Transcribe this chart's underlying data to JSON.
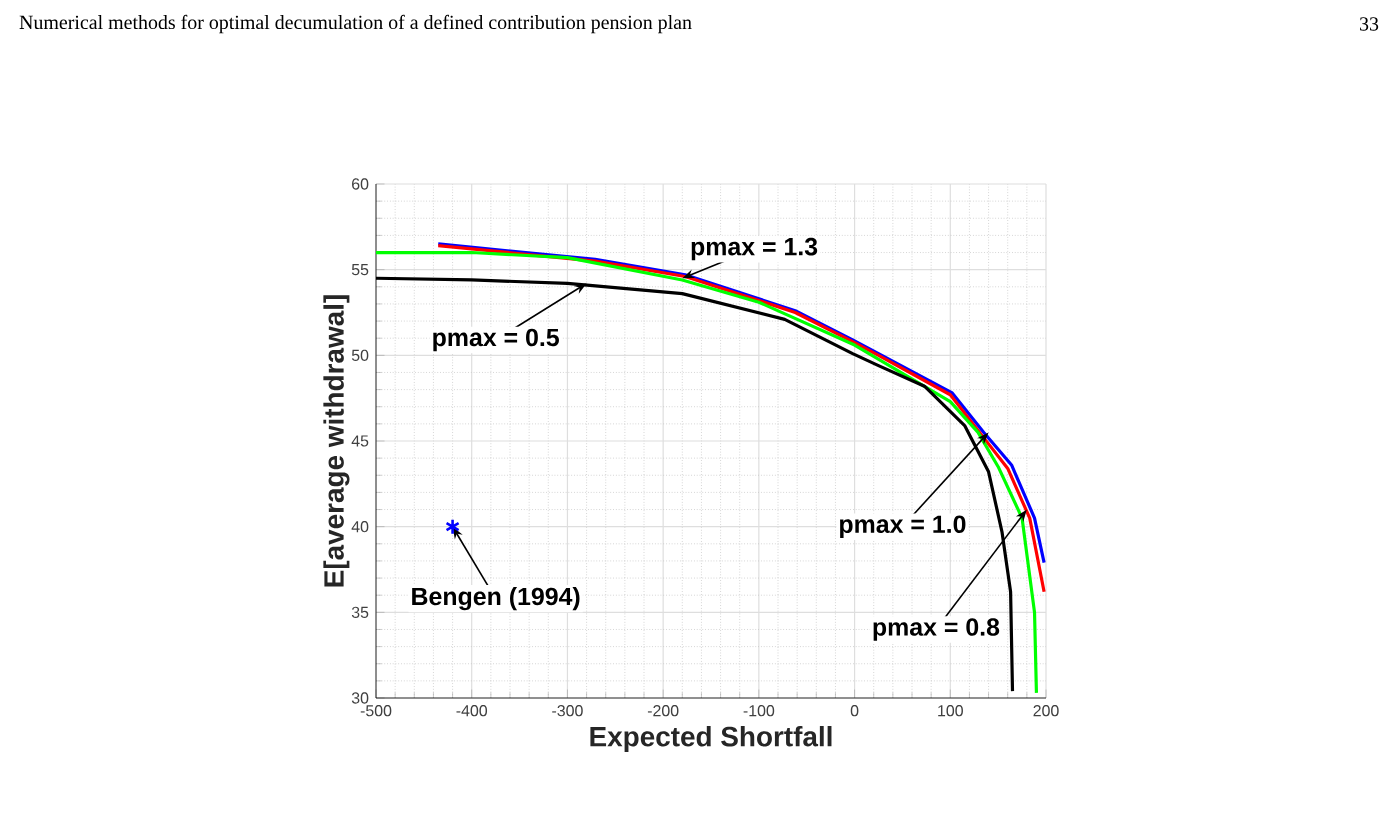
{
  "chart_data": {
    "type": "line",
    "xlabel": "Expected Shortfall",
    "ylabel": "E[average withdrawal]",
    "xlim": [
      -500,
      200
    ],
    "xticks": [
      -500,
      -400,
      -300,
      -200,
      -100,
      0,
      100,
      200
    ],
    "ylim": [
      30,
      60
    ],
    "yticks": [
      30,
      35,
      40,
      45,
      50,
      55,
      60
    ],
    "grid": true,
    "series": [
      {
        "color": "#0000ff",
        "x": [
          -435,
          -271,
          -177,
          -100,
          -62,
          -2,
          25,
          102,
          135,
          164,
          188,
          198
        ],
        "values": [
          56.5,
          55.6,
          54.7,
          53.3,
          52.6,
          50.9,
          50.1,
          47.8,
          45.5,
          43.6,
          40.5,
          37.9
        ]
      },
      {
        "color": "#ff0000",
        "x": [
          -435,
          -271,
          -177,
          -100,
          -62,
          -2,
          25,
          100,
          132,
          160,
          183,
          198
        ],
        "values": [
          56.4,
          55.5,
          54.6,
          53.2,
          52.5,
          50.8,
          50.0,
          47.7,
          45.4,
          43.4,
          40.5,
          36.2
        ]
      },
      {
        "color": "#00ff00",
        "x": [
          -500,
          -400,
          -300,
          -180,
          -100,
          0,
          100,
          129,
          150,
          175,
          188,
          190
        ],
        "values": [
          56.0,
          56.0,
          55.7,
          54.4,
          53.1,
          50.6,
          47.3,
          45.5,
          43.5,
          40.5,
          35.0,
          30.3
        ]
      },
      {
        "color": "#000000",
        "x": [
          -500,
          -400,
          -300,
          -180,
          -73,
          -2,
          25,
          73,
          115,
          140,
          154,
          163,
          165
        ],
        "values": [
          54.5,
          54.4,
          54.2,
          53.6,
          52.1,
          50.1,
          49.4,
          48.2,
          45.9,
          43.2,
          39.7,
          36.2,
          30.4
        ]
      },
      {
        "type": "scatter",
        "marker": "cross",
        "color": "#0000ff",
        "x": [
          -420
        ],
        "values": [
          40
        ]
      }
    ],
    "annotations": [
      "Numerical methods for optimal decumulation of a defined contribution pension plan",
      "33",
      {
        "text": "pmax = 1.3",
        "x": -180,
        "y": 54.5
      },
      {
        "text": "pmax = 0.5",
        "x": -280,
        "y": 54.2
      },
      {
        "text": "pmax = 1.0",
        "x": 140,
        "y": 45.5
      },
      {
        "text": "pmax = 0.8",
        "x": 180,
        "y": 41
      },
      {
        "text": "Bengen (1994)",
        "x": -420,
        "y": 40
      }
    ]
  }
}
